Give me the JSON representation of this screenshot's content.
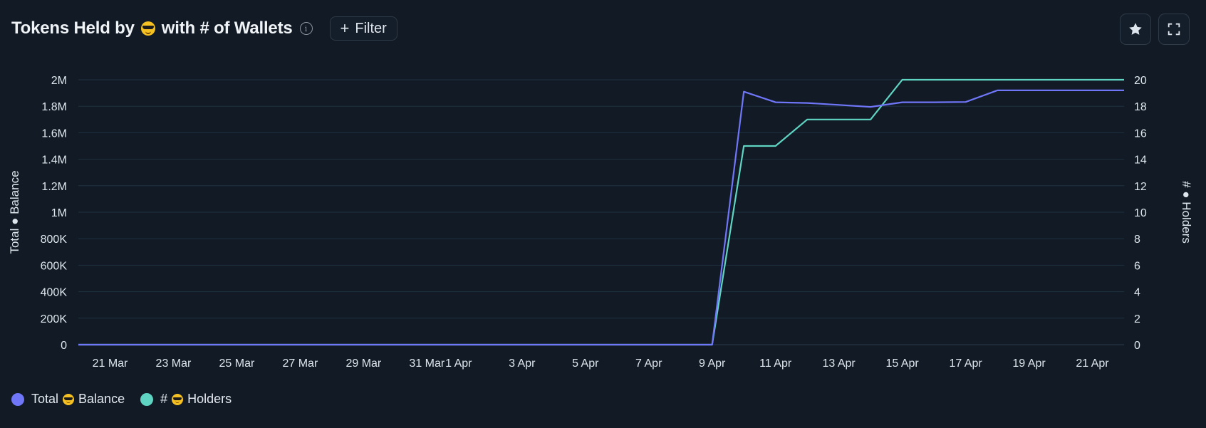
{
  "header": {
    "title_before": "Tokens Held by",
    "title_after": "with # of Wallets",
    "emoji_icon": "sunglasses-face-icon",
    "info_icon": "info-icon",
    "filter_label": "Filter"
  },
  "toolbar": {
    "star_icon": "star-icon",
    "expand_icon": "fullscreen-icon"
  },
  "legend": {
    "balance_prefix": "Total",
    "balance_suffix": "Balance",
    "holders_prefix": "#",
    "holders_suffix": "Holders"
  },
  "chart_data": {
    "type": "line",
    "x": [
      "20 Mar",
      "21 Mar",
      "22 Mar",
      "23 Mar",
      "24 Mar",
      "25 Mar",
      "26 Mar",
      "27 Mar",
      "28 Mar",
      "29 Mar",
      "30 Mar",
      "31 Mar",
      "1 Apr",
      "2 Apr",
      "3 Apr",
      "4 Apr",
      "5 Apr",
      "6 Apr",
      "7 Apr",
      "8 Apr",
      "9 Apr",
      "10 Apr",
      "11 Apr",
      "12 Apr",
      "13 Apr",
      "14 Apr",
      "15 Apr",
      "16 Apr",
      "17 Apr",
      "18 Apr",
      "19 Apr",
      "20 Apr",
      "21 Apr",
      "22 Apr"
    ],
    "x_tick_labels": [
      "21 Mar",
      "23 Mar",
      "25 Mar",
      "27 Mar",
      "29 Mar",
      "31 Mar",
      "1 Apr",
      "3 Apr",
      "5 Apr",
      "7 Apr",
      "9 Apr",
      "11 Apr",
      "13 Apr",
      "15 Apr",
      "17 Apr",
      "19 Apr",
      "21 Apr"
    ],
    "series": [
      {
        "name": "Total Balance",
        "axis": "left",
        "color": "#6f76f7",
        "values": [
          0,
          0,
          0,
          0,
          0,
          0,
          0,
          0,
          0,
          0,
          0,
          0,
          0,
          0,
          0,
          0,
          0,
          0,
          0,
          0,
          0,
          1910000,
          1830000,
          1825000,
          1810000,
          1795000,
          1830000,
          1830000,
          1832000,
          1920000,
          1920000,
          1920000,
          1920000,
          1920000
        ]
      },
      {
        "name": "# Holders",
        "axis": "right",
        "color": "#5fd4c2",
        "values": [
          0,
          0,
          0,
          0,
          0,
          0,
          0,
          0,
          0,
          0,
          0,
          0,
          0,
          0,
          0,
          0,
          0,
          0,
          0,
          0,
          0,
          15,
          15,
          17,
          17,
          17,
          20,
          20,
          20,
          20,
          20,
          20,
          20,
          20
        ]
      }
    ],
    "y_left": {
      "label_prefix": "Total",
      "label_suffix": "Balance",
      "ylim": [
        0,
        2000000
      ],
      "ticks": [
        "0",
        "200K",
        "400K",
        "600K",
        "800K",
        "1M",
        "1.2M",
        "1.4M",
        "1.6M",
        "1.8M",
        "2M"
      ]
    },
    "y_right": {
      "label_prefix": "#",
      "label_suffix": "Holders",
      "ylim": [
        0,
        20
      ],
      "ticks": [
        "0",
        "2",
        "4",
        "6",
        "8",
        "10",
        "12",
        "14",
        "16",
        "18",
        "20"
      ]
    },
    "grid": true,
    "legend_position": "bottom-left"
  }
}
